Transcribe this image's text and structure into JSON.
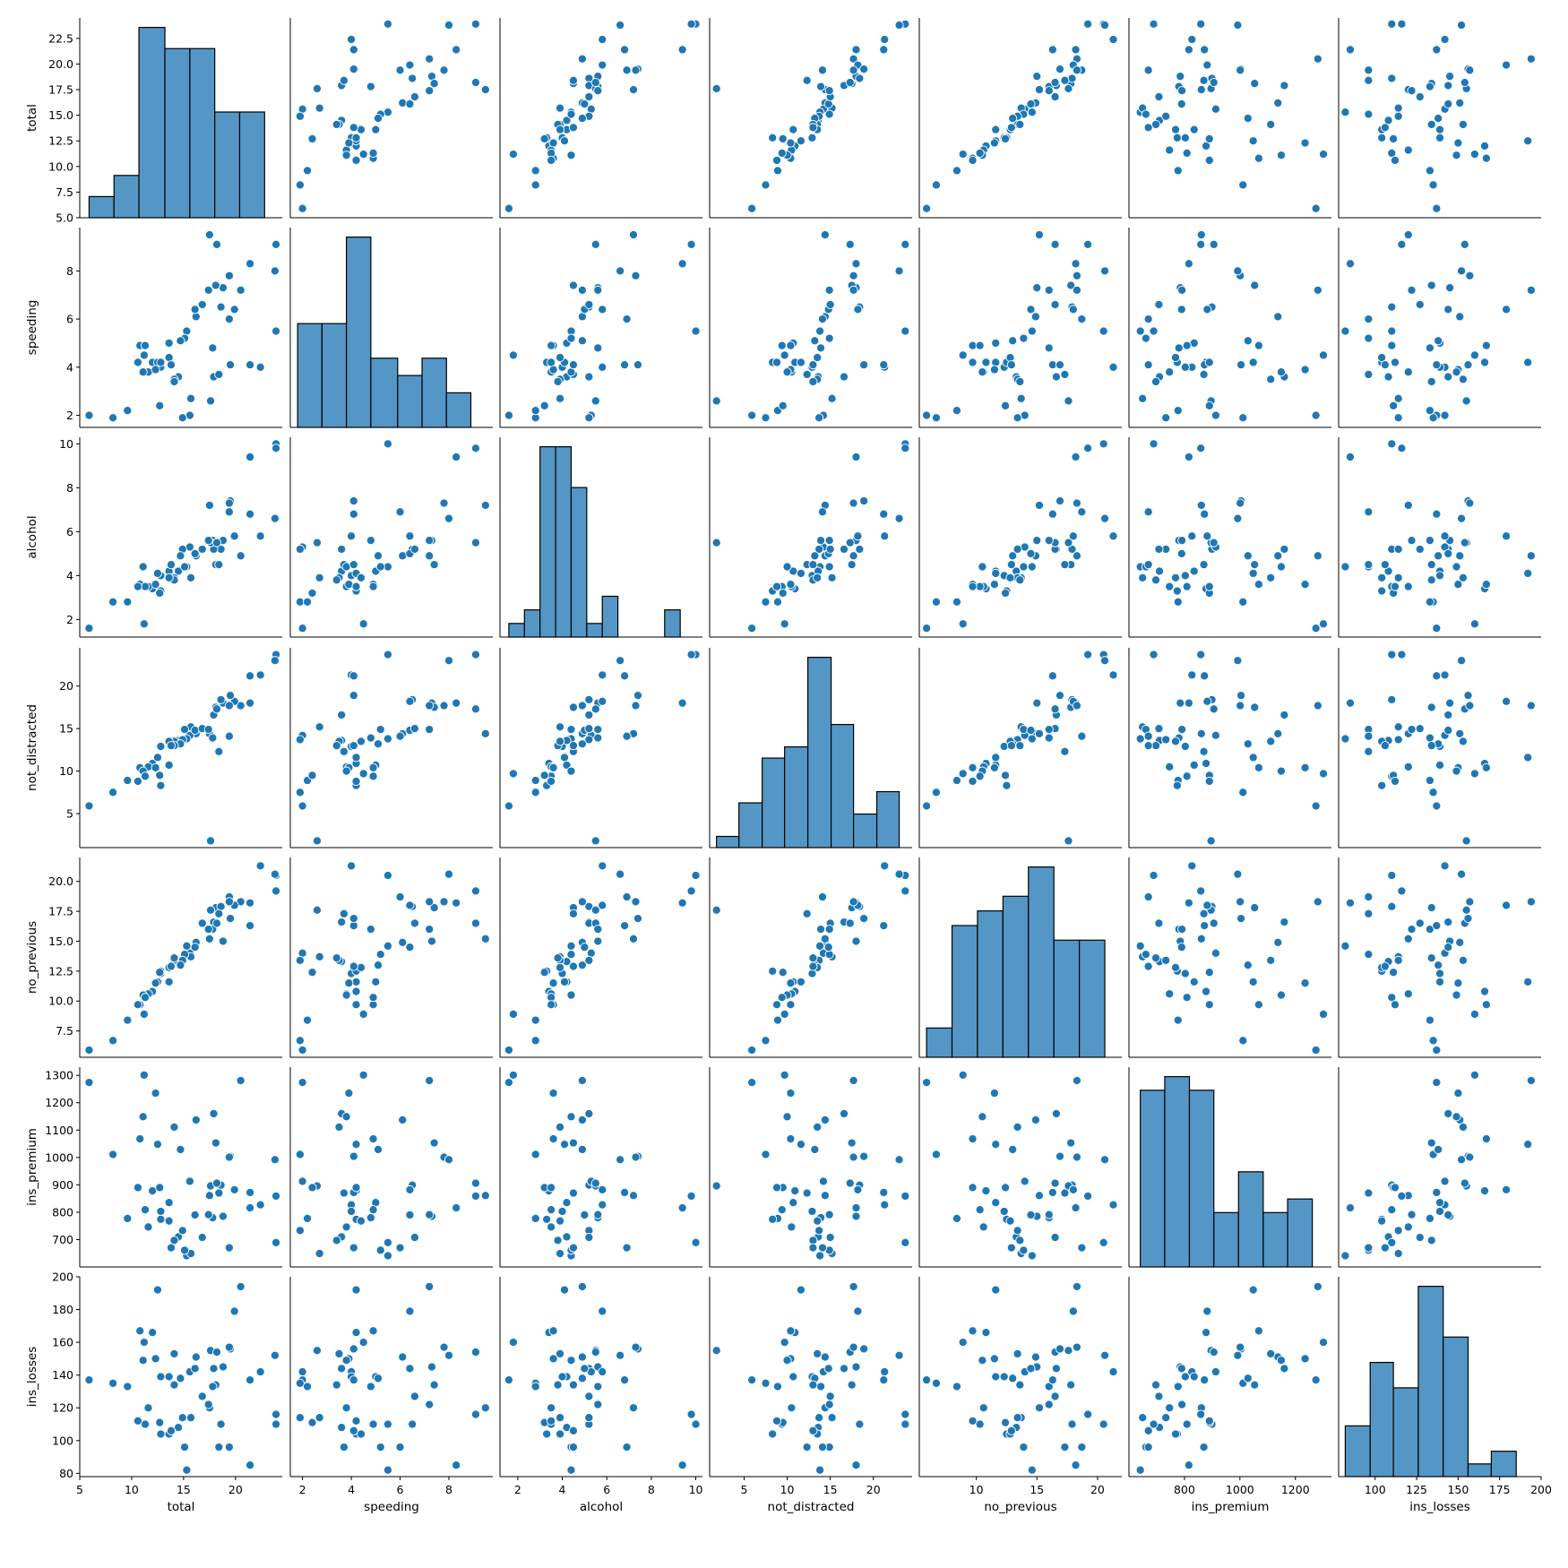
{
  "chart_data": {
    "type": "pairplot",
    "title": "",
    "variables": [
      "total",
      "speeding",
      "alcohol",
      "not_distracted",
      "no_previous",
      "ins_premium",
      "ins_losses"
    ],
    "ranges": {
      "total": [
        5.0,
        24.5
      ],
      "speeding": [
        1.5,
        9.8
      ],
      "alcohol": [
        1.2,
        10.3
      ],
      "not_distracted": [
        1.0,
        24.5
      ],
      "no_previous": [
        5.3,
        22.0
      ],
      "ins_premium": [
        600,
        1330
      ],
      "ins_losses": [
        78,
        200
      ]
    },
    "ticks": {
      "total": [
        5.0,
        7.5,
        10.0,
        12.5,
        15.0,
        17.5,
        20.0,
        22.5
      ],
      "speeding": [
        2,
        4,
        6,
        8
      ],
      "alcohol": [
        2,
        4,
        6,
        8,
        10
      ],
      "not_distracted": [
        5,
        10,
        15,
        20
      ],
      "no_previous": [
        7.5,
        10.0,
        12.5,
        15.0,
        17.5,
        20.0
      ],
      "ins_premium": [
        700,
        800,
        900,
        1000,
        1100,
        1200,
        1300
      ],
      "ins_losses": [
        80,
        100,
        120,
        140,
        160,
        180,
        200
      ]
    },
    "x_ticks": {
      "total": [
        5,
        10,
        15,
        20
      ],
      "speeding": [
        2,
        4,
        6,
        8
      ],
      "alcohol": [
        2,
        4,
        6,
        8,
        10
      ],
      "not_distracted": [
        5,
        10,
        15,
        20
      ],
      "no_previous": [
        10,
        15,
        20
      ],
      "ins_premium": [
        800,
        1000,
        1200
      ],
      "ins_losses": [
        100,
        125,
        150,
        175,
        200
      ]
    },
    "diagonal": "histogram",
    "off_diagonal": "scatter",
    "colors": {
      "marker": "#1f77b4",
      "bar": "#5497c6",
      "bar_edge": "#000000"
    },
    "histograms": {
      "total": {
        "edges": [
          5.9,
          8.3,
          10.7,
          13.2,
          15.6,
          18.0,
          20.4,
          22.8,
          25.2
        ],
        "counts": [
          1,
          2,
          9,
          8,
          8,
          5,
          5,
          0
        ]
      },
      "speeding": {
        "edges": [
          1.8,
          2.8,
          3.8,
          4.8,
          5.9,
          6.9,
          7.9,
          8.9,
          9.5
        ],
        "counts": [
          6,
          6,
          11,
          4,
          3,
          4,
          2,
          0
        ]
      },
      "alcohol": {
        "edges": [
          1.6,
          2.3,
          3.0,
          3.7,
          4.4,
          5.1,
          5.8,
          6.5,
          7.2,
          7.9,
          8.6,
          9.3,
          10.0
        ],
        "counts": [
          1,
          2,
          14,
          14,
          11,
          1,
          3,
          0,
          0,
          0,
          2,
          0
        ]
      },
      "not_distracted": {
        "edges": [
          1.8,
          4.4,
          7.1,
          9.7,
          12.4,
          15.1,
          17.7,
          20.4,
          23.0
        ],
        "counts": [
          1,
          4,
          8,
          9,
          17,
          11,
          3,
          5
        ]
      },
      "no_previous": {
        "edges": [
          5.9,
          8.0,
          10.1,
          12.2,
          14.3,
          16.4,
          18.5,
          20.6,
          22.7
        ],
        "counts": [
          2,
          9,
          10,
          11,
          13,
          8,
          8,
          0
        ]
      },
      "ins_premium": {
        "edges": [
          641,
          729,
          818,
          906,
          995,
          1084,
          1172,
          1261,
          1350
        ],
        "counts": [
          13,
          14,
          13,
          4,
          7,
          4,
          5,
          0
        ]
      },
      "ins_losses": {
        "edges": [
          82,
          97,
          111,
          126,
          141,
          156,
          170,
          185,
          200
        ],
        "counts": [
          4,
          9,
          7,
          15,
          11,
          1,
          2,
          0
        ]
      }
    },
    "points": [
      {
        "total": 18.8,
        "speeding": 7.3,
        "alcohol": 5.6,
        "not_distracted": 18.0,
        "no_previous": 15.0,
        "ins_premium": 785,
        "ins_losses": 145
      },
      {
        "total": 18.1,
        "speeding": 7.4,
        "alcohol": 4.5,
        "not_distracted": 17.5,
        "no_previous": 17.8,
        "ins_premium": 1053,
        "ins_losses": 134
      },
      {
        "total": 18.6,
        "speeding": 6.5,
        "alcohol": 5.2,
        "not_distracted": 18.4,
        "no_previous": 17.9,
        "ins_premium": 899,
        "ins_losses": 110
      },
      {
        "total": 22.4,
        "speeding": 4.0,
        "alcohol": 5.8,
        "not_distracted": 21.3,
        "no_previous": 21.3,
        "ins_premium": 827,
        "ins_losses": 142
      },
      {
        "total": 12.0,
        "speeding": 4.2,
        "alcohol": 3.4,
        "not_distracted": 10.9,
        "no_previous": 10.8,
        "ins_premium": 878,
        "ins_losses": 166
      },
      {
        "total": 13.6,
        "speeding": 5.0,
        "alcohol": 4.2,
        "not_distracted": 10.7,
        "no_previous": 11.6,
        "ins_premium": 835,
        "ins_losses": 139
      },
      {
        "total": 10.8,
        "speeding": 4.9,
        "alcohol": 3.6,
        "not_distracted": 10.4,
        "no_previous": 9.7,
        "ins_premium": 1068,
        "ins_losses": 167
      },
      {
        "total": 16.2,
        "speeding": 6.1,
        "alcohol": 4.9,
        "not_distracted": 14.4,
        "no_previous": 14.9,
        "ins_premium": 1137,
        "ins_losses": 151
      },
      {
        "total": 5.9,
        "speeding": 2.0,
        "alcohol": 1.6,
        "not_distracted": 5.9,
        "no_previous": 5.9,
        "ins_premium": 1274,
        "ins_losses": 137
      },
      {
        "total": 17.9,
        "speeding": 3.6,
        "alcohol": 5.2,
        "not_distracted": 16.6,
        "no_previous": 16.6,
        "ins_premium": 1160,
        "ins_losses": 144
      },
      {
        "total": 15.6,
        "speeding": 2.0,
        "alcohol": 5.3,
        "not_distracted": 14.2,
        "no_previous": 14.0,
        "ins_premium": 913,
        "ins_losses": 142
      },
      {
        "total": 17.5,
        "speeding": 9.5,
        "alcohol": 7.2,
        "not_distracted": 14.4,
        "no_previous": 15.2,
        "ins_premium": 861,
        "ins_losses": 120
      },
      {
        "total": 15.3,
        "speeding": 5.5,
        "alcohol": 4.4,
        "not_distracted": 13.8,
        "no_previous": 14.6,
        "ins_premium": 641,
        "ins_losses": 82
      },
      {
        "total": 12.8,
        "speeding": 4.0,
        "alcohol": 4.0,
        "not_distracted": 12.9,
        "no_previous": 12.3,
        "ins_premium": 803,
        "ins_losses": 139
      },
      {
        "total": 14.5,
        "speeding": 3.6,
        "alcohol": 4.2,
        "not_distracted": 13.6,
        "no_previous": 13.3,
        "ins_premium": 710,
        "ins_losses": 108
      },
      {
        "total": 15.7,
        "speeding": 2.7,
        "alcohol": 3.9,
        "not_distracted": 15.2,
        "no_previous": 13.7,
        "ins_premium": 649,
        "ins_losses": 114
      },
      {
        "total": 17.8,
        "speeding": 4.8,
        "alcohol": 5.6,
        "not_distracted": 13.9,
        "no_previous": 16.0,
        "ins_premium": 780,
        "ins_losses": 133
      },
      {
        "total": 21.4,
        "speeding": 4.1,
        "alcohol": 6.8,
        "not_distracted": 21.2,
        "no_previous": 16.3,
        "ins_premium": 872,
        "ins_losses": 137
      },
      {
        "total": 20.5,
        "speeding": 7.2,
        "alcohol": 4.9,
        "not_distracted": 17.7,
        "no_previous": 18.3,
        "ins_premium": 1281,
        "ins_losses": 194
      },
      {
        "total": 15.1,
        "speeding": 5.2,
        "alcohol": 4.4,
        "not_distracted": 14.9,
        "no_previous": 13.9,
        "ins_premium": 661,
        "ins_losses": 96
      },
      {
        "total": 12.5,
        "speeding": 4.2,
        "alcohol": 4.1,
        "not_distracted": 11.6,
        "no_previous": 11.6,
        "ins_premium": 1048,
        "ins_losses": 192
      },
      {
        "total": 8.2,
        "speeding": 1.9,
        "alcohol": 2.8,
        "not_distracted": 7.5,
        "no_previous": 6.7,
        "ins_premium": 1011,
        "ins_losses": 135
      },
      {
        "total": 14.1,
        "speeding": 3.5,
        "alcohol": 3.9,
        "not_distracted": 13.5,
        "no_previous": 13.4,
        "ins_premium": 1111,
        "ins_losses": 153
      },
      {
        "total": 9.6,
        "speeding": 2.2,
        "alcohol": 2.8,
        "not_distracted": 8.9,
        "no_previous": 8.4,
        "ins_premium": 777,
        "ins_losses": 133
      },
      {
        "total": 17.6,
        "speeding": 2.6,
        "alcohol": 5.5,
        "not_distracted": 1.8,
        "no_previous": 17.6,
        "ins_premium": 896,
        "ins_losses": 155
      },
      {
        "total": 16.1,
        "speeding": 6.4,
        "alcohol": 5.0,
        "not_distracted": 14.8,
        "no_previous": 14.5,
        "ins_premium": 790,
        "ins_losses": 144
      },
      {
        "total": 21.4,
        "speeding": 8.3,
        "alcohol": 9.4,
        "not_distracted": 18.0,
        "no_previous": 18.2,
        "ins_premium": 816,
        "ins_losses": 85
      },
      {
        "total": 14.9,
        "speeding": 1.9,
        "alcohol": 5.2,
        "not_distracted": 13.7,
        "no_previous": 13.4,
        "ins_premium": 733,
        "ins_losses": 114
      },
      {
        "total": 14.7,
        "speeding": 5.1,
        "alcohol": 4.9,
        "not_distracted": 13.2,
        "no_previous": 13.0,
        "ins_premium": 1029,
        "ins_losses": 138
      },
      {
        "total": 11.6,
        "speeding": 3.8,
        "alcohol": 3.5,
        "not_distracted": 10.5,
        "no_previous": 10.6,
        "ins_premium": 746,
        "ins_losses": 120
      },
      {
        "total": 11.2,
        "speeding": 4.5,
        "alcohol": 1.8,
        "not_distracted": 9.7,
        "no_previous": 8.9,
        "ins_premium": 1301,
        "ins_losses": 160
      },
      {
        "total": 18.4,
        "speeding": 3.7,
        "alcohol": 4.5,
        "not_distracted": 12.3,
        "no_previous": 17.3,
        "ins_premium": 870,
        "ins_losses": 96
      },
      {
        "total": 12.3,
        "speeding": 3.9,
        "alcohol": 3.6,
        "not_distracted": 10.4,
        "no_previous": 11.5,
        "ins_premium": 1235,
        "ins_losses": 150
      },
      {
        "total": 16.8,
        "speeding": 6.6,
        "alcohol": 5.2,
        "not_distracted": 15.0,
        "no_previous": 16.5,
        "ins_premium": 708,
        "ins_losses": 127
      },
      {
        "total": 23.9,
        "speeding": 5.5,
        "alcohol": 10.0,
        "not_distracted": 23.7,
        "no_previous": 20.5,
        "ins_premium": 689,
        "ins_losses": 110
      },
      {
        "total": 14.1,
        "speeding": 3.4,
        "alcohol": 3.8,
        "not_distracted": 13.0,
        "no_previous": 13.6,
        "ins_premium": 697,
        "ins_losses": 134
      },
      {
        "total": 19.9,
        "speeding": 6.4,
        "alcohol": 5.8,
        "not_distracted": 18.2,
        "no_previous": 18.0,
        "ins_premium": 882,
        "ins_losses": 179
      },
      {
        "total": 12.8,
        "speeding": 4.2,
        "alcohol": 3.3,
        "not_distracted": 8.3,
        "no_previous": 12.5,
        "ins_premium": 774,
        "ins_losses": 104
      },
      {
        "total": 18.2,
        "speeding": 9.1,
        "alcohol": 5.5,
        "not_distracted": 17.3,
        "no_previous": 16.5,
        "ins_premium": 906,
        "ins_losses": 154
      },
      {
        "total": 11.1,
        "speeding": 3.8,
        "alcohol": 4.4,
        "not_distracted": 10.0,
        "no_previous": 10.5,
        "ins_premium": 1149,
        "ins_losses": 149
      },
      {
        "total": 23.9,
        "speeding": 9.1,
        "alcohol": 9.8,
        "not_distracted": 23.7,
        "no_previous": 19.2,
        "ins_premium": 859,
        "ins_losses": 116
      },
      {
        "total": 19.4,
        "speeding": 6.0,
        "alcohol": 6.9,
        "not_distracted": 14.1,
        "no_previous": 18.7,
        "ins_premium": 670,
        "ins_losses": 96
      },
      {
        "total": 19.5,
        "speeding": 4.1,
        "alcohol": 7.4,
        "not_distracted": 18.9,
        "no_previous": 16.9,
        "ins_premium": 1004,
        "ins_losses": 156
      },
      {
        "total": 19.4,
        "speeding": 7.8,
        "alcohol": 7.3,
        "not_distracted": 17.7,
        "no_previous": 18.3,
        "ins_premium": 1001,
        "ins_losses": 157
      },
      {
        "total": 11.3,
        "speeding": 4.9,
        "alcohol": 3.5,
        "not_distracted": 9.4,
        "no_previous": 10.3,
        "ins_premium": 809,
        "ins_losses": 110
      },
      {
        "total": 13.6,
        "speeding": 4.4,
        "alcohol": 3.9,
        "not_distracted": 13.5,
        "no_previous": 12.8,
        "ins_premium": 768,
        "ins_losses": 104
      },
      {
        "total": 12.7,
        "speeding": 2.4,
        "alcohol": 3.2,
        "not_distracted": 9.5,
        "no_previous": 12.4,
        "ins_premium": 890,
        "ins_losses": 111
      },
      {
        "total": 10.6,
        "speeding": 4.2,
        "alcohol": 3.5,
        "not_distracted": 8.8,
        "no_previous": 9.7,
        "ins_premium": 890,
        "ins_losses": 112
      },
      {
        "total": 23.8,
        "speeding": 8.0,
        "alcohol": 6.6,
        "not_distracted": 23.0,
        "no_previous": 20.6,
        "ins_premium": 992,
        "ins_losses": 152
      },
      {
        "total": 13.8,
        "speeding": 4.1,
        "alcohol": 4.5,
        "not_distracted": 13.0,
        "no_previous": 12.9,
        "ins_premium": 670,
        "ins_losses": 106
      },
      {
        "total": 17.4,
        "speeding": 7.2,
        "alcohol": 5.6,
        "not_distracted": 14.9,
        "no_previous": 16.0,
        "ins_premium": 791,
        "ins_losses": 122
      }
    ]
  }
}
